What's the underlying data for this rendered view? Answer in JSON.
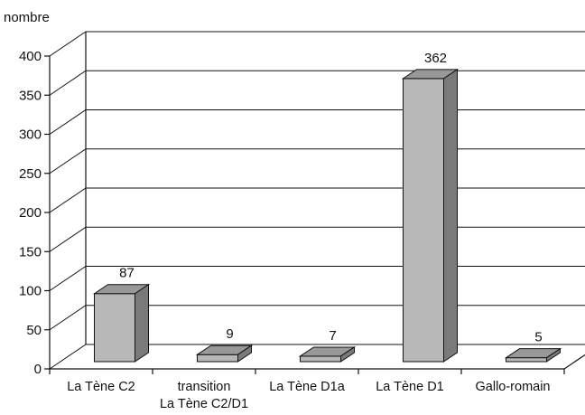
{
  "chart_data": {
    "type": "bar",
    "ylabel": "nombre",
    "categories": [
      [
        "La Tène C2"
      ],
      [
        "transition",
        "La Tène C2/D1"
      ],
      [
        "La Tène D1a"
      ],
      [
        "La Tène D1"
      ],
      [
        "Gallo-romain"
      ]
    ],
    "values": [
      87,
      9,
      7,
      362,
      5
    ],
    "value_labels": [
      "87",
      "9",
      "7",
      "362",
      "5"
    ],
    "ylim": [
      0,
      400
    ],
    "yticks": [
      "0",
      "50",
      "100",
      "150",
      "200",
      "250",
      "300",
      "350",
      "400"
    ],
    "grid": true,
    "three_d": true,
    "colors": {
      "bar_front": "#b8b8b8",
      "bar_top": "#989898",
      "bar_side": "#7a7a7a"
    }
  }
}
